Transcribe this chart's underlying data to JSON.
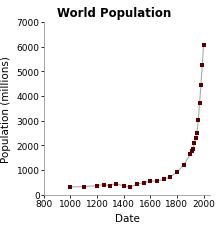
{
  "title": "World Population",
  "xlabel": "Date",
  "ylabel": "Population (millions)",
  "xlim": [
    800,
    2050
  ],
  "ylim": [
    0,
    7000
  ],
  "xticks": [
    800,
    1000,
    1200,
    1400,
    1600,
    1800,
    2000
  ],
  "yticks": [
    0,
    1000,
    2000,
    3000,
    4000,
    5000,
    6000,
    7000
  ],
  "line_color": "#aaaaaa",
  "marker_color": "#5a0000",
  "marker_size": 3.5,
  "data": [
    [
      1000,
      310
    ],
    [
      1100,
      320
    ],
    [
      1200,
      360
    ],
    [
      1250,
      400
    ],
    [
      1300,
      360
    ],
    [
      1340,
      443
    ],
    [
      1400,
      350
    ],
    [
      1450,
      300
    ],
    [
      1500,
      425
    ],
    [
      1550,
      480
    ],
    [
      1600,
      545
    ],
    [
      1650,
      545
    ],
    [
      1700,
      610
    ],
    [
      1750,
      720
    ],
    [
      1800,
      900
    ],
    [
      1850,
      1200
    ],
    [
      1900,
      1625
    ],
    [
      1910,
      1750
    ],
    [
      1920,
      1860
    ],
    [
      1930,
      2070
    ],
    [
      1940,
      2300
    ],
    [
      1950,
      2500
    ],
    [
      1960,
      3020
    ],
    [
      1970,
      3700
    ],
    [
      1980,
      4430
    ],
    [
      1990,
      5270
    ],
    [
      2000,
      6060
    ]
  ],
  "background_color": "#ffffff",
  "title_fontsize": 8.5,
  "axis_fontsize": 7.5,
  "tick_fontsize": 6.5
}
